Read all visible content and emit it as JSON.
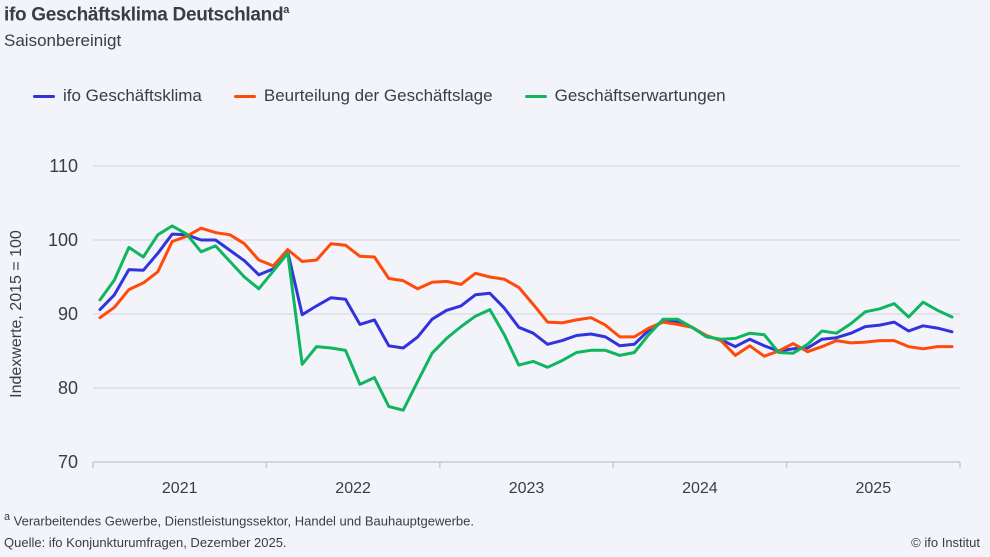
{
  "header": {
    "title": "ifo Geschäftsklima Deutschland",
    "title_footnote_mark": "a",
    "subtitle": "Saisonbereinigt"
  },
  "footer": {
    "footnote_mark": "a",
    "footnote": " Verarbeitendes Gewerbe, Dienstleistungssektor, Handel und Bauhauptgewerbe.",
    "source": "Quelle: ifo Konjunkturumfragen, Dezember 2025.",
    "copyright": "© ifo Institut"
  },
  "chart_data": {
    "type": "line",
    "title": "ifo Geschäftsklima Deutschland",
    "subtitle": "Saisonbereinigt",
    "ylabel": "Indexwerte, 2015 = 100",
    "xlabel": "",
    "ylim": [
      70,
      110
    ],
    "yticks": [
      "70",
      "80",
      "90",
      "100",
      "110"
    ],
    "x_start": "2021-01",
    "x_end": "2025-12",
    "x_frequency": "monthly",
    "xtick_labels": [
      "2021",
      "2022",
      "2023",
      "2024",
      "2025"
    ],
    "grid": true,
    "legend_placement": "top",
    "series": [
      {
        "name": "ifo Geschäftsklima",
        "color": "#3333dd",
        "values": [
          90.6,
          92.6,
          96.0,
          95.9,
          98.2,
          100.8,
          100.7,
          100.0,
          100.0,
          98.6,
          97.2,
          95.3,
          96.1,
          98.4,
          89.9,
          91.1,
          92.2,
          92.0,
          88.6,
          89.2,
          85.7,
          85.4,
          86.9,
          89.3,
          90.5,
          91.1,
          92.6,
          92.8,
          90.8,
          88.2,
          87.4,
          85.9,
          86.4,
          87.1,
          87.3,
          86.9,
          85.7,
          85.9,
          87.8,
          89.1,
          89.0,
          88.2,
          87.0,
          86.5,
          85.6,
          86.6,
          85.7,
          85.0,
          85.3,
          85.4,
          86.6,
          86.8,
          87.4,
          88.3,
          88.5,
          88.9,
          87.7,
          88.4,
          88.1,
          87.6
        ]
      },
      {
        "name": "Beurteilung der Geschäftslage",
        "color": "#ff4a0a",
        "values": [
          89.5,
          90.9,
          93.3,
          94.2,
          95.7,
          99.8,
          100.5,
          101.6,
          101.0,
          100.7,
          99.5,
          97.3,
          96.5,
          98.7,
          97.1,
          97.3,
          99.5,
          99.3,
          97.8,
          97.7,
          94.8,
          94.5,
          93.4,
          94.3,
          94.4,
          94.0,
          95.5,
          95.0,
          94.7,
          93.6,
          91.3,
          88.9,
          88.8,
          89.2,
          89.5,
          88.5,
          86.9,
          86.9,
          88.1,
          88.9,
          88.6,
          88.2,
          87.1,
          86.4,
          84.4,
          85.7,
          84.3,
          85.0,
          86.0,
          84.9,
          85.6,
          86.4,
          86.1,
          86.2,
          86.4,
          86.4,
          85.6,
          85.3,
          85.6,
          85.6
        ]
      },
      {
        "name": "Geschäftserwartungen",
        "color": "#10b560",
        "values": [
          91.9,
          94.6,
          99.0,
          97.7,
          100.7,
          101.9,
          100.8,
          98.4,
          99.2,
          97.1,
          95.0,
          93.4,
          95.8,
          98.2,
          83.2,
          85.6,
          85.4,
          85.1,
          80.5,
          81.4,
          77.5,
          77.0,
          80.9,
          84.7,
          86.7,
          88.3,
          89.7,
          90.6,
          87.2,
          83.1,
          83.6,
          82.8,
          83.7,
          84.8,
          85.1,
          85.1,
          84.4,
          84.8,
          87.2,
          89.3,
          89.3,
          88.2,
          86.9,
          86.6,
          86.7,
          87.4,
          87.2,
          84.8,
          84.7,
          85.9,
          87.7,
          87.4,
          88.7,
          90.3,
          90.7,
          91.4,
          89.6,
          91.6,
          90.5,
          89.6
        ]
      }
    ]
  }
}
